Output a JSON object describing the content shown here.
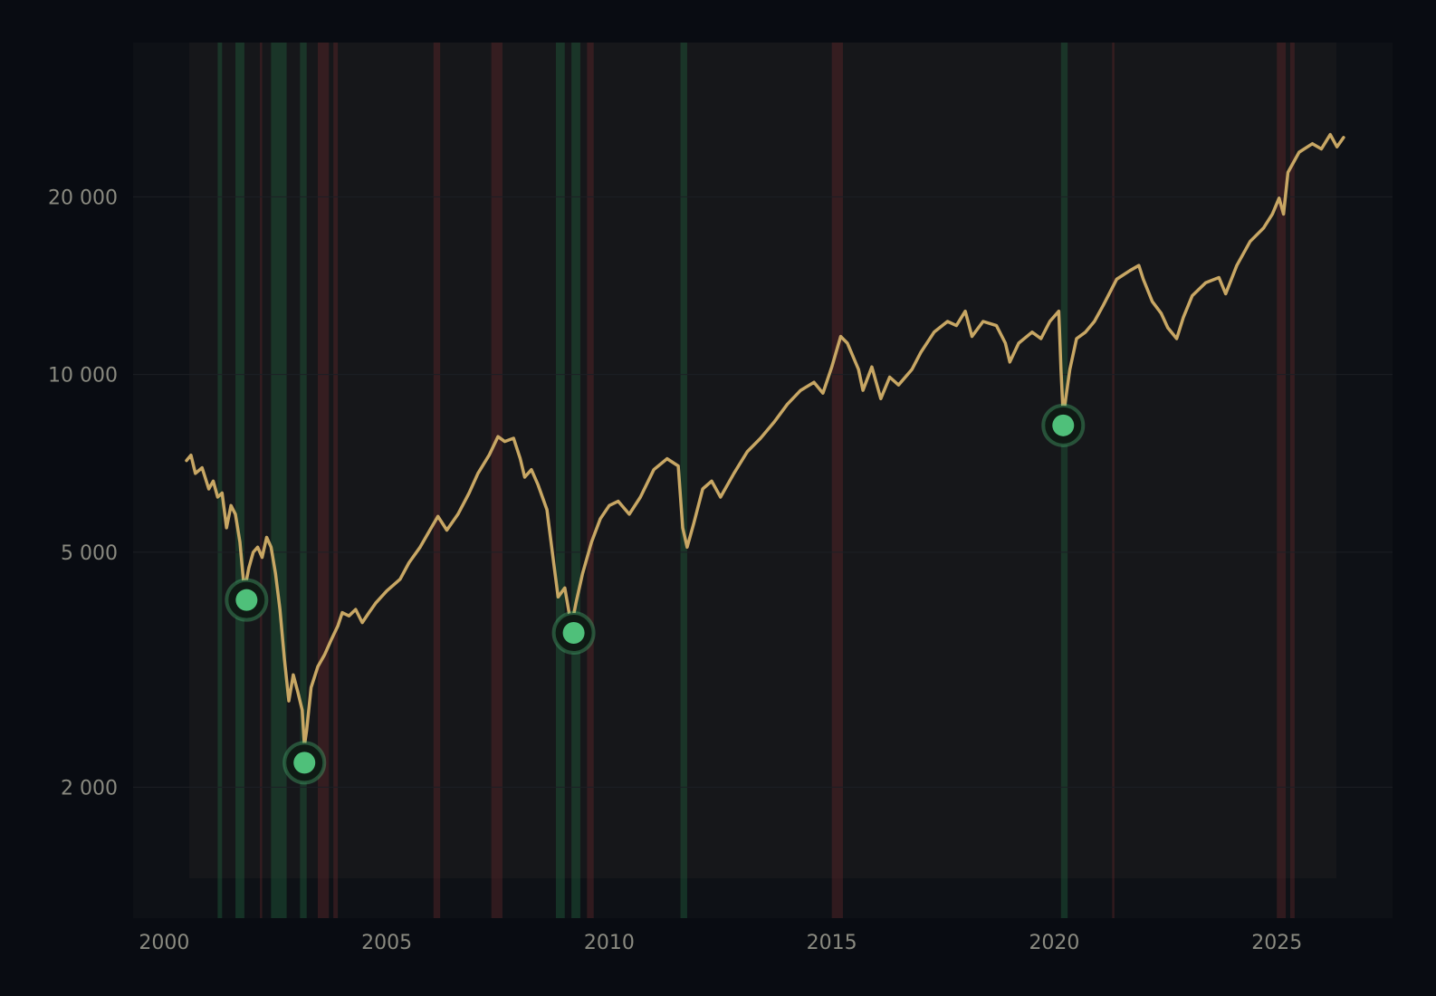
{
  "chart_data": {
    "type": "line",
    "title": "",
    "xlabel": "",
    "ylabel": "",
    "y_scale": "log",
    "xlim": [
      1999.3,
      2027.6
    ],
    "ylim": [
      1200,
      36500
    ],
    "grid": "horizontal",
    "legend": "none",
    "x_ticks": [
      {
        "value": 2000,
        "label": "2000"
      },
      {
        "value": 2005,
        "label": "2005"
      },
      {
        "value": 2010,
        "label": "2010"
      },
      {
        "value": 2015,
        "label": "2015"
      },
      {
        "value": 2020,
        "label": "2020"
      },
      {
        "value": 2025,
        "label": "2025"
      }
    ],
    "y_ticks": [
      {
        "value": 2000,
        "label": "2 000"
      },
      {
        "value": 5000,
        "label": "5 000"
      },
      {
        "value": 10000,
        "label": "10 000"
      },
      {
        "value": 20000,
        "label": "20 000"
      }
    ],
    "series": [
      {
        "color": "#c8a764",
        "points": [
          [
            2000.5,
            7150
          ],
          [
            2000.6,
            7300
          ],
          [
            2000.7,
            6800
          ],
          [
            2000.85,
            6950
          ],
          [
            2001.0,
            6400
          ],
          [
            2001.1,
            6600
          ],
          [
            2001.2,
            6200
          ],
          [
            2001.3,
            6300
          ],
          [
            2001.4,
            5500
          ],
          [
            2001.5,
            6000
          ],
          [
            2001.6,
            5800
          ],
          [
            2001.7,
            5200
          ],
          [
            2001.8,
            4300
          ],
          [
            2001.9,
            4700
          ],
          [
            2002.0,
            5000
          ],
          [
            2002.1,
            5100
          ],
          [
            2002.2,
            4900
          ],
          [
            2002.3,
            5300
          ],
          [
            2002.4,
            5100
          ],
          [
            2002.5,
            4600
          ],
          [
            2002.6,
            4000
          ],
          [
            2002.7,
            3300
          ],
          [
            2002.8,
            2800
          ],
          [
            2002.9,
            3100
          ],
          [
            2003.0,
            2900
          ],
          [
            2003.1,
            2700
          ],
          [
            2003.15,
            2350
          ],
          [
            2003.2,
            2500
          ],
          [
            2003.3,
            2950
          ],
          [
            2003.45,
            3200
          ],
          [
            2003.6,
            3350
          ],
          [
            2003.75,
            3550
          ],
          [
            2003.9,
            3750
          ],
          [
            2004.0,
            3950
          ],
          [
            2004.15,
            3900
          ],
          [
            2004.3,
            4000
          ],
          [
            2004.45,
            3800
          ],
          [
            2004.6,
            3950
          ],
          [
            2004.75,
            4100
          ],
          [
            2005.0,
            4300
          ],
          [
            2005.3,
            4500
          ],
          [
            2005.5,
            4800
          ],
          [
            2005.75,
            5100
          ],
          [
            2006.0,
            5500
          ],
          [
            2006.15,
            5750
          ],
          [
            2006.35,
            5450
          ],
          [
            2006.6,
            5800
          ],
          [
            2006.85,
            6300
          ],
          [
            2007.05,
            6800
          ],
          [
            2007.3,
            7300
          ],
          [
            2007.5,
            7850
          ],
          [
            2007.65,
            7700
          ],
          [
            2007.85,
            7800
          ],
          [
            2008.0,
            7200
          ],
          [
            2008.1,
            6700
          ],
          [
            2008.25,
            6900
          ],
          [
            2008.4,
            6500
          ],
          [
            2008.6,
            5900
          ],
          [
            2008.75,
            4800
          ],
          [
            2008.85,
            4200
          ],
          [
            2009.0,
            4350
          ],
          [
            2009.15,
            3750
          ],
          [
            2009.25,
            4100
          ],
          [
            2009.4,
            4600
          ],
          [
            2009.6,
            5200
          ],
          [
            2009.8,
            5700
          ],
          [
            2010.0,
            6000
          ],
          [
            2010.2,
            6100
          ],
          [
            2010.45,
            5800
          ],
          [
            2010.7,
            6200
          ],
          [
            2011.0,
            6900
          ],
          [
            2011.3,
            7200
          ],
          [
            2011.55,
            7000
          ],
          [
            2011.65,
            5500
          ],
          [
            2011.75,
            5100
          ],
          [
            2011.9,
            5600
          ],
          [
            2012.1,
            6400
          ],
          [
            2012.3,
            6600
          ],
          [
            2012.5,
            6200
          ],
          [
            2012.8,
            6800
          ],
          [
            2013.1,
            7400
          ],
          [
            2013.4,
            7800
          ],
          [
            2013.7,
            8300
          ],
          [
            2014.0,
            8900
          ],
          [
            2014.3,
            9400
          ],
          [
            2014.6,
            9700
          ],
          [
            2014.8,
            9300
          ],
          [
            2015.0,
            10300
          ],
          [
            2015.2,
            11600
          ],
          [
            2015.35,
            11300
          ],
          [
            2015.6,
            10200
          ],
          [
            2015.7,
            9400
          ],
          [
            2015.9,
            10300
          ],
          [
            2016.1,
            9100
          ],
          [
            2016.3,
            9900
          ],
          [
            2016.5,
            9600
          ],
          [
            2016.8,
            10200
          ],
          [
            2017.0,
            10900
          ],
          [
            2017.3,
            11800
          ],
          [
            2017.6,
            12300
          ],
          [
            2017.8,
            12100
          ],
          [
            2018.0,
            12800
          ],
          [
            2018.15,
            11600
          ],
          [
            2018.4,
            12300
          ],
          [
            2018.7,
            12100
          ],
          [
            2018.9,
            11300
          ],
          [
            2019.0,
            10500
          ],
          [
            2019.2,
            11300
          ],
          [
            2019.5,
            11800
          ],
          [
            2019.7,
            11500
          ],
          [
            2019.9,
            12300
          ],
          [
            2020.1,
            12800
          ],
          [
            2020.15,
            10200
          ],
          [
            2020.2,
            8500
          ],
          [
            2020.35,
            10200
          ],
          [
            2020.5,
            11500
          ],
          [
            2020.7,
            11800
          ],
          [
            2020.9,
            12300
          ],
          [
            2021.1,
            13100
          ],
          [
            2021.4,
            14500
          ],
          [
            2021.7,
            15000
          ],
          [
            2021.9,
            15300
          ],
          [
            2022.0,
            14500
          ],
          [
            2022.2,
            13300
          ],
          [
            2022.4,
            12700
          ],
          [
            2022.55,
            12000
          ],
          [
            2022.75,
            11500
          ],
          [
            2022.9,
            12500
          ],
          [
            2023.1,
            13600
          ],
          [
            2023.4,
            14300
          ],
          [
            2023.7,
            14600
          ],
          [
            2023.85,
            13700
          ],
          [
            2024.1,
            15300
          ],
          [
            2024.4,
            16800
          ],
          [
            2024.7,
            17700
          ],
          [
            2024.9,
            18700
          ],
          [
            2025.05,
            19900
          ],
          [
            2025.15,
            18700
          ],
          [
            2025.25,
            22000
          ],
          [
            2025.5,
            23800
          ],
          [
            2025.8,
            24600
          ],
          [
            2026.0,
            24100
          ],
          [
            2026.2,
            25500
          ],
          [
            2026.35,
            24300
          ],
          [
            2026.5,
            25200
          ]
        ]
      }
    ],
    "markers": [
      {
        "x": 2001.85,
        "y": 4150,
        "color": "#4fc07a"
      },
      {
        "x": 2003.15,
        "y": 2200,
        "color": "#4fc07a"
      },
      {
        "x": 2009.2,
        "y": 3650,
        "color": "#4fc07a"
      },
      {
        "x": 2020.2,
        "y": 8200,
        "color": "#4fc07a"
      }
    ],
    "bands": {
      "green_color": "#1f5a3a",
      "red_color": "#5a2528",
      "green": [
        [
          2001.2,
          2001.3
        ],
        [
          2001.6,
          2001.8
        ],
        [
          2002.4,
          2002.75
        ],
        [
          2003.05,
          2003.2
        ],
        [
          2008.8,
          2009.0
        ],
        [
          2009.15,
          2009.35
        ],
        [
          2011.6,
          2011.75
        ],
        [
          2020.15,
          2020.3
        ]
      ],
      "red": [
        [
          2002.15,
          2002.2
        ],
        [
          2003.45,
          2003.7
        ],
        [
          2003.8,
          2003.9
        ],
        [
          2006.05,
          2006.2
        ],
        [
          2007.35,
          2007.6
        ],
        [
          2009.5,
          2009.65
        ],
        [
          2015.0,
          2015.25
        ],
        [
          2021.3,
          2021.35
        ],
        [
          2025.0,
          2025.2
        ],
        [
          2025.3,
          2025.4
        ]
      ]
    }
  }
}
